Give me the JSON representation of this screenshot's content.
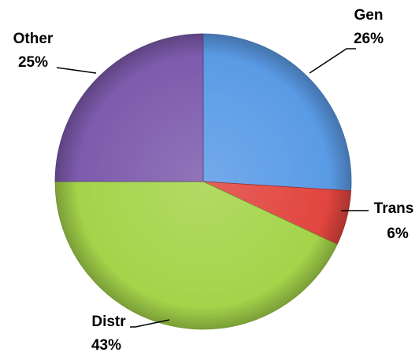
{
  "chart_data": {
    "type": "pie",
    "categories": [
      "Gen",
      "Trans",
      "Distr",
      "Other"
    ],
    "values": [
      26,
      6,
      43,
      25
    ],
    "value_labels": [
      "26%",
      "6%",
      "43%",
      "25%"
    ],
    "colors": [
      "#5a9be6",
      "#e2453f",
      "#a4d44a",
      "#7d5bad"
    ]
  }
}
